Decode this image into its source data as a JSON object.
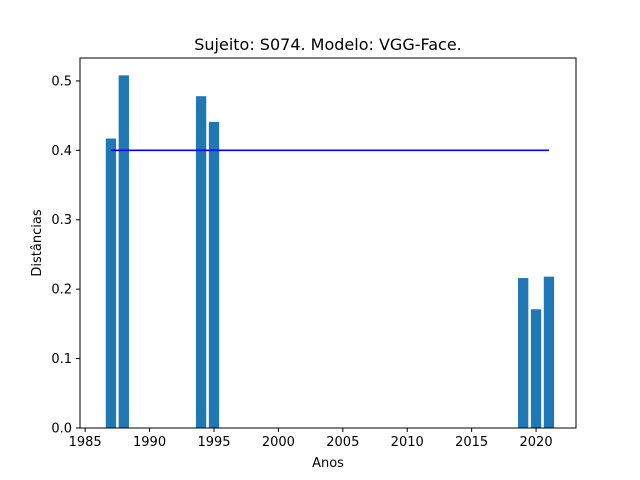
{
  "chart_data": {
    "type": "bar",
    "title": "Sujeito: S074. Modelo: VGG-Face.",
    "xlabel": "Anos",
    "ylabel": "Distâncias",
    "xlim": [
      1984.6,
      2023.1
    ],
    "ylim": [
      0,
      0.533
    ],
    "xticks": [
      1985,
      1990,
      1995,
      2000,
      2005,
      2010,
      2015,
      2020
    ],
    "yticks": [
      0.0,
      0.1,
      0.2,
      0.3,
      0.4,
      0.5
    ],
    "bar_width_years": 0.8,
    "bar_color": "#1f77b4",
    "bars": [
      {
        "x": 1987,
        "y": 0.417
      },
      {
        "x": 1988,
        "y": 0.508
      },
      {
        "x": 1994,
        "y": 0.478
      },
      {
        "x": 1995,
        "y": 0.441
      },
      {
        "x": 2019,
        "y": 0.216
      },
      {
        "x": 2020,
        "y": 0.171
      },
      {
        "x": 2021,
        "y": 0.218
      }
    ],
    "threshold_line": {
      "x": [
        1987,
        2021
      ],
      "y": 0.4,
      "color": "#0000ff"
    },
    "grid": false,
    "legend": "none"
  }
}
